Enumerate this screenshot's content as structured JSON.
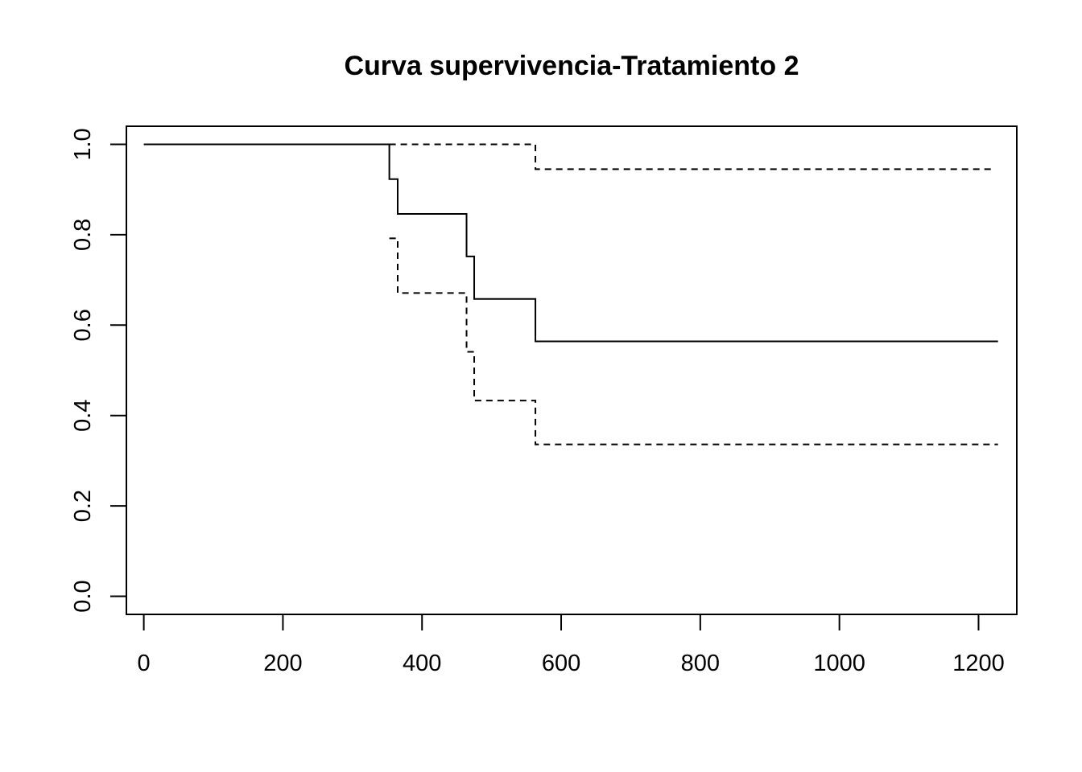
{
  "chart_data": {
    "type": "line",
    "title": "Curva supervivencia-Tratamiento 2",
    "xlabel": "",
    "ylabel": "",
    "xlim": [
      -25,
      1255
    ],
    "ylim": [
      -0.04,
      1.04
    ],
    "x_ticks": [
      0,
      200,
      400,
      600,
      800,
      1000,
      1200
    ],
    "x_tick_labels": [
      "0",
      "200",
      "400",
      "600",
      "800",
      "1000",
      "1200"
    ],
    "y_ticks": [
      0.0,
      0.2,
      0.4,
      0.6,
      0.8,
      1.0
    ],
    "y_tick_labels": [
      "0.0",
      "0.2",
      "0.4",
      "0.6",
      "0.8",
      "1.0"
    ],
    "grid": false,
    "legend": "none",
    "series": [
      {
        "style": "solid",
        "color": "#000000",
        "step": true,
        "x": [
          0,
          353,
          365,
          464,
          475,
          563,
          1228
        ],
        "y": [
          1.0,
          0.923,
          0.846,
          0.752,
          0.658,
          0.564,
          0.564
        ]
      },
      {
        "style": "dashed",
        "color": "#000000",
        "step": true,
        "x": [
          353,
          563,
          1218
        ],
        "y": [
          1.0,
          0.945,
          0.945
        ]
      },
      {
        "style": "dashed",
        "color": "#000000",
        "step": true,
        "x": [
          353,
          365,
          464,
          475,
          563,
          1228
        ],
        "y": [
          0.792,
          0.671,
          0.541,
          0.433,
          0.336,
          0.336
        ]
      }
    ]
  }
}
